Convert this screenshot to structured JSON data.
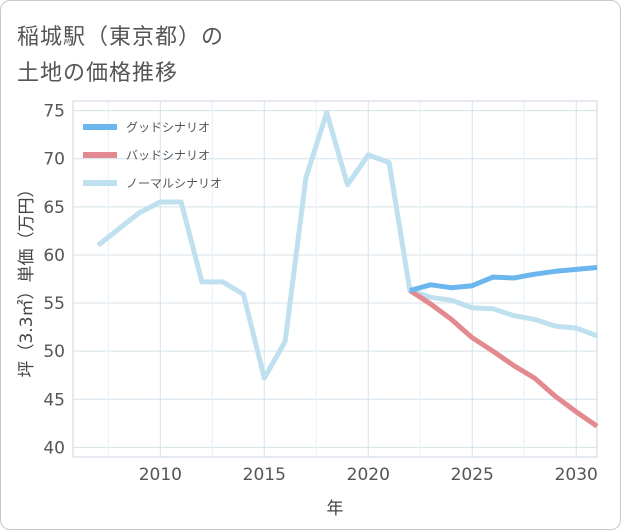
{
  "title_line1": "稲城駅（東京都）の",
  "title_line2": "土地の価格推移",
  "chart_data": {
    "type": "line",
    "xlabel": "年",
    "ylabel": "坪（3.3㎡）単価（万円）",
    "xlim": [
      2005.8,
      2031
    ],
    "ylim": [
      39,
      76
    ],
    "xticks": [
      2010,
      2015,
      2020,
      2025,
      2030
    ],
    "yticks": [
      40,
      45,
      50,
      55,
      60,
      65,
      70,
      75
    ],
    "grid": true,
    "legend_position": "top-left",
    "series": [
      {
        "name": "グッドシナリオ",
        "color": "#6cb6ee",
        "x": [
          2022,
          2023,
          2024,
          2025,
          2026,
          2027,
          2028,
          2029,
          2030,
          2031
        ],
        "values": [
          56.3,
          56.9,
          56.6,
          56.8,
          57.7,
          57.6,
          58.0,
          58.3,
          58.5,
          58.7
        ]
      },
      {
        "name": "バッドシナリオ",
        "color": "#e28a90",
        "x": [
          2022,
          2023,
          2024,
          2025,
          2026,
          2027,
          2028,
          2029,
          2030,
          2031
        ],
        "values": [
          56.3,
          54.9,
          53.3,
          51.4,
          50.0,
          48.5,
          47.2,
          45.3,
          43.7,
          42.2
        ]
      },
      {
        "name": "ノーマルシナリオ",
        "color": "#bfe0ee",
        "x": [
          2007,
          2008,
          2009,
          2010,
          2011,
          2012,
          2013,
          2014,
          2015,
          2016,
          2017,
          2018,
          2019,
          2020,
          2021,
          2022,
          2023,
          2024,
          2025,
          2026,
          2027,
          2028,
          2029,
          2030,
          2031
        ],
        "values": [
          61.0,
          62.7,
          64.4,
          65.5,
          65.5,
          57.2,
          57.2,
          55.9,
          47.2,
          51.0,
          68.0,
          74.8,
          67.3,
          70.4,
          69.6,
          56.3,
          55.6,
          55.3,
          54.5,
          54.4,
          53.7,
          53.3,
          52.6,
          52.4,
          51.6
        ]
      }
    ]
  }
}
